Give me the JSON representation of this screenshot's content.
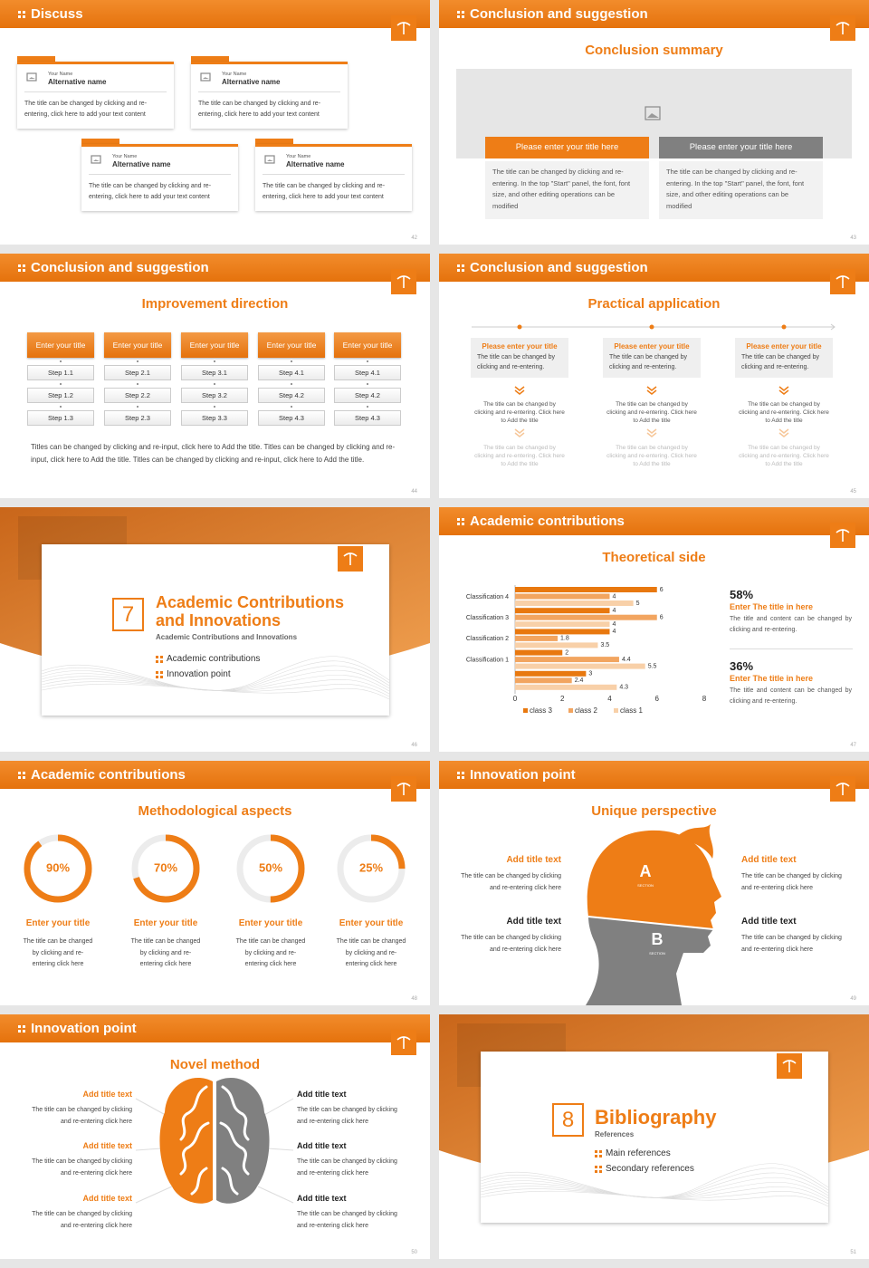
{
  "slides": [
    {
      "header": "Discuss",
      "page": "42",
      "cards": [
        {
          "label": "Your Name",
          "name": "Alternative name",
          "text": "The title can be changed by clicking and re-entering, click here to add your text content"
        },
        {
          "label": "Your Name",
          "name": "Alternative name",
          "text": "The title can be changed by clicking and re-entering, click here to add your text content"
        },
        {
          "label": "Your Name",
          "name": "Alternative name",
          "text": "The title can be changed by clicking and re-entering, click here to add your text content"
        },
        {
          "label": "Your Name",
          "name": "Alternative name",
          "text": "The title can be changed by clicking and re-entering, click here to add your text content"
        }
      ]
    },
    {
      "header": "Conclusion and suggestion",
      "page": "43",
      "title": "Conclusion summary",
      "boxes": [
        {
          "title": "Please enter your title here",
          "text": "The title can be changed by clicking and re-entering. In the top \"Start\" panel, the font, font size, and other editing operations can be modified"
        },
        {
          "title": "Please enter your title here",
          "text": "The title can be changed by clicking and re-entering. In the top \"Start\" panel, the font, font size, and other editing operations can be modified"
        }
      ]
    },
    {
      "header": "Conclusion and suggestion",
      "page": "44",
      "title": "Improvement direction",
      "columns": [
        {
          "title": "Enter your title",
          "steps": [
            "Step 1.1",
            "Step 1.2",
            "Step 1.3"
          ]
        },
        {
          "title": "Enter your title",
          "steps": [
            "Step 2.1",
            "Step 2.2",
            "Step 2.3"
          ]
        },
        {
          "title": "Enter your title",
          "steps": [
            "Step 3.1",
            "Step 3.2",
            "Step 3.3"
          ]
        },
        {
          "title": "Enter your title",
          "steps": [
            "Step 4.1",
            "Step 4.2",
            "Step 4.3"
          ]
        },
        {
          "title": "Enter your title",
          "steps": [
            "Step 4.1",
            "Step 4.2",
            "Step 4.3"
          ]
        }
      ],
      "text": "Titles can be changed by clicking and re-input, click here to Add the title. Titles can be changed by clicking and re-input, click here to Add the title. Titles can be changed by clicking and re-input, click here to Add the title."
    },
    {
      "header": "Conclusion and suggestion",
      "page": "45",
      "title": "Practical application",
      "columns": [
        {
          "title": "Please enter your title",
          "text": "The title can be changed by clicking and re-entering.",
          "notes": [
            "The title can be changed by clicking and re-entering. Click here to Add the title",
            "The title can be changed by clicking and re-entering. Click here to Add the title"
          ]
        },
        {
          "title": "Please enter your title",
          "text": "The title can be changed by clicking and re-entering.",
          "notes": [
            "The title can be changed by clicking and re-entering. Click here to Add the title",
            "The title can be changed by clicking and re-entering. Click here to Add the title"
          ]
        },
        {
          "title": "Please enter your title",
          "text": "The title can be changed by clicking and re-entering.",
          "notes": [
            "The title can be changed by clicking and re-entering. Click here to Add the title",
            "The title can be changed by clicking and re-entering. Click here to Add the title"
          ]
        }
      ]
    },
    {
      "page": "46",
      "number": "7",
      "title": "Academic Contributions and Innovations",
      "subtitle": "Academic Contributions and Innovations",
      "items": [
        "Academic contributions",
        "Innovation point"
      ]
    },
    {
      "header": "Academic contributions",
      "page": "47",
      "title": "Theoretical side",
      "stats": [
        {
          "value": "58%",
          "title": "Enter The title in here",
          "text": "The title and content can be changed by clicking and re-entering."
        },
        {
          "value": "36%",
          "title": "Enter The title in here",
          "text": "The title and content can be changed by clicking and re-entering."
        }
      ]
    },
    {
      "header": "Academic contributions",
      "page": "48",
      "title": "Methodological aspects",
      "items": [
        {
          "title": "Enter your title",
          "text": "The title can be changed by clicking and re-entering click here"
        },
        {
          "title": "Enter your title",
          "text": "The title can be changed by clicking and re-entering click here"
        },
        {
          "title": "Enter your title",
          "text": "The title can be changed by clicking and re-entering click here"
        },
        {
          "title": "Enter your title",
          "text": "The title can be changed by clicking and re-entering click here"
        }
      ]
    },
    {
      "header": "Innovation point",
      "page": "49",
      "title": "Unique perspective",
      "head": [
        {
          "letter": "A",
          "caption": "SECTION"
        },
        {
          "letter": "B",
          "caption": "SECTION"
        }
      ],
      "items": [
        {
          "title": "Add title text",
          "text": "The title can be changed by clicking and re-entering click here"
        },
        {
          "title": "Add title text",
          "text": "The title can be changed by clicking and re-entering click here"
        },
        {
          "title": "Add title text",
          "text": "The title can be changed by clicking and re-entering click here"
        },
        {
          "title": "Add title text",
          "text": "The title can be changed by clicking and re-entering click here"
        }
      ]
    },
    {
      "header": "Innovation point",
      "page": "50",
      "title": "Novel method",
      "items": [
        {
          "title": "Add title text",
          "text": "The title can be changed by clicking and re-entering click here"
        },
        {
          "title": "Add title text",
          "text": "The title can be changed by clicking and re-entering click here"
        },
        {
          "title": "Add title text",
          "text": "The title can be changed by clicking and re-entering click here"
        },
        {
          "title": "Add title text",
          "text": "The title can be changed by clicking and re-entering click here"
        },
        {
          "title": "Add title text",
          "text": "The title can be changed by clicking and re-entering click here"
        },
        {
          "title": "Add title text",
          "text": "The title can be changed by clicking and re-entering click here"
        }
      ]
    },
    {
      "page": "51",
      "number": "8",
      "title": "Bibliography",
      "subtitle": "References",
      "items": [
        "Main references",
        "Secondary references"
      ]
    }
  ],
  "chart_data": [
    {
      "type": "bar",
      "orientation": "horizontal",
      "categories": [
        "Classification 4",
        "Classification 3",
        "Classification 2",
        "Classification 1",
        null
      ],
      "series": [
        {
          "name": "class 3",
          "color": "#e8780f",
          "values": [
            6,
            4,
            4,
            2,
            3
          ]
        },
        {
          "name": "class 2",
          "color": "#f2a560",
          "values": [
            4,
            6,
            1.8,
            4.4,
            2.4
          ]
        },
        {
          "name": "class 1",
          "color": "#f8d0a8",
          "values": [
            5,
            4,
            3.5,
            5.5,
            4.3
          ]
        }
      ],
      "xlim": [
        0,
        8
      ],
      "xticks": [
        0,
        2,
        4,
        6,
        8
      ],
      "grid": false,
      "data_labels": true,
      "legend": "bottom"
    },
    {
      "type": "donut",
      "values": [
        90,
        70,
        50,
        25
      ],
      "value_labels": [
        "90%",
        "70%",
        "50%",
        "25%"
      ],
      "color": "#ee7d16",
      "track_color": "#ececec",
      "ylim": [
        0,
        100
      ]
    }
  ]
}
